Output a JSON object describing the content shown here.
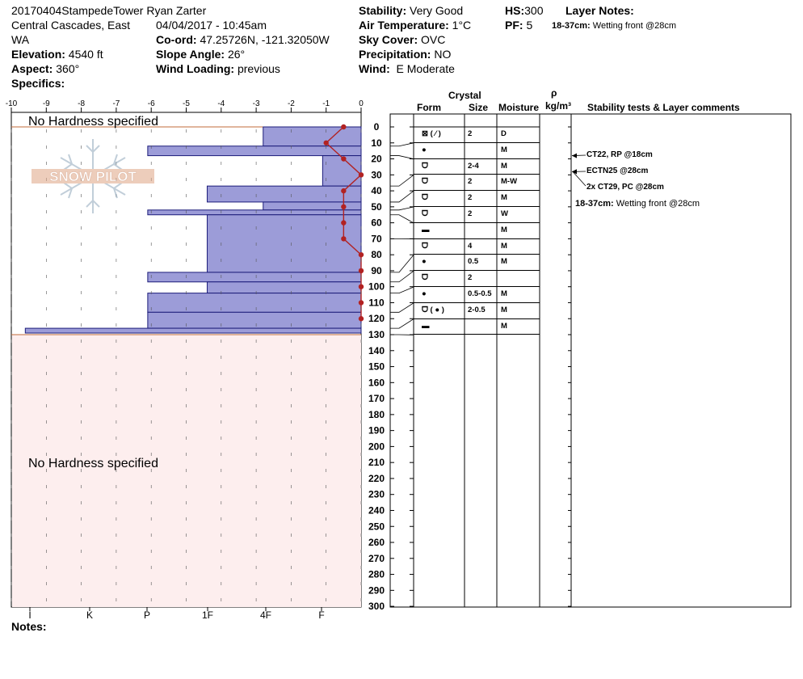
{
  "header": {
    "title_line1": "20170404StampedeTower Ryan Zarter",
    "location_line1": "Central Cascades, East",
    "location_line2": "WA",
    "elevation_label": "Elevation:",
    "elevation_value": "4540 ft",
    "aspect_label": "Aspect:",
    "aspect_value": "360°",
    "specifics_label": "Specifics:",
    "datetime": "04/04/2017 - 10:45am",
    "coord_label": "Co-ord:",
    "coord_value": "47.25726N, -121.32050W",
    "slope_label": "Slope Angle:",
    "slope_value": "26°",
    "wind_loading_label": "Wind Loading:",
    "wind_loading_value": "previous",
    "stability_label": "Stability:",
    "stability_value": "Very Good",
    "air_temp_label": "Air Temperature:",
    "air_temp_value": "1°C",
    "sky_label": "Sky Cover:",
    "sky_value": "OVC",
    "precip_label": "Precipitation:",
    "precip_value": "NO",
    "wind_label": "Wind:",
    "wind_value": "E Moderate",
    "hs_label": "HS:",
    "hs_value": "300",
    "pf_label": "PF:",
    "pf_value": "5",
    "layer_notes_label": "Layer Notes:",
    "layer_note_depth": "18-37cm:",
    "layer_note_text": "Wetting front @28cm"
  },
  "columns": {
    "crystal": "Crystal",
    "form": "Form",
    "size": "Size",
    "moisture": "Moisture",
    "rho": "ρ",
    "density_unit": "kg/m³",
    "stability_comments": "Stability tests & Layer comments"
  },
  "notes_label": "Notes:",
  "logo_text": "SNOW PILOT",
  "colors": {
    "hardness_fill": "#9c9cd8",
    "temp_line": "#b22222",
    "no_hardness_bg": "#fdeeee"
  },
  "chart_data": {
    "type": "bar",
    "no_hardness_label": "No Hardness specified",
    "temperature_axis": {
      "ticks": [
        -10,
        -9,
        -8,
        -7,
        -6,
        -5,
        -4,
        -3,
        -2,
        -1,
        0
      ],
      "range": [
        -10,
        0
      ]
    },
    "hardness_axis": {
      "labels": [
        "I",
        "K",
        "P",
        "1F",
        "4F",
        "F"
      ]
    },
    "depth_axis": {
      "range": [
        0,
        300
      ],
      "step": 10
    },
    "hardness_profile": [
      {
        "from": 0,
        "to": 12,
        "temp_equiv": -2.8
      },
      {
        "from": 12,
        "to": 18,
        "temp_equiv": -6.1
      },
      {
        "from": 18,
        "to": 37,
        "temp_equiv": -1.1
      },
      {
        "from": 37,
        "to": 47,
        "temp_equiv": -4.4
      },
      {
        "from": 47,
        "to": 52,
        "temp_equiv": -2.8
      },
      {
        "from": 52,
        "to": 55,
        "temp_equiv": -6.1
      },
      {
        "from": 55,
        "to": 91,
        "temp_equiv": -4.4
      },
      {
        "from": 91,
        "to": 97,
        "temp_equiv": -6.1
      },
      {
        "from": 97,
        "to": 104,
        "temp_equiv": -4.4
      },
      {
        "from": 104,
        "to": 116,
        "temp_equiv": -6.1
      },
      {
        "from": 116,
        "to": 126,
        "temp_equiv": -6.1
      },
      {
        "from": 126,
        "to": 129,
        "temp_equiv": -9.6
      }
    ],
    "temperature_profile": [
      {
        "depth": 0,
        "temp": -0.5
      },
      {
        "depth": 10,
        "temp": -1.0
      },
      {
        "depth": 20,
        "temp": -0.5
      },
      {
        "depth": 30,
        "temp": 0
      },
      {
        "depth": 40,
        "temp": -0.5
      },
      {
        "depth": 50,
        "temp": -0.5
      },
      {
        "depth": 60,
        "temp": -0.5
      },
      {
        "depth": 70,
        "temp": -0.5
      },
      {
        "depth": 80,
        "temp": 0
      },
      {
        "depth": 90,
        "temp": 0
      },
      {
        "depth": 100,
        "temp": 0
      },
      {
        "depth": 110,
        "temp": 0
      },
      {
        "depth": 120,
        "temp": 0
      }
    ],
    "layers": [
      {
        "from": 0,
        "to": 12,
        "form": "⊠ ( ⁄ )",
        "size": "2",
        "moisture": "D"
      },
      {
        "from": 12,
        "to": 18,
        "form": "●",
        "size": "",
        "moisture": "M"
      },
      {
        "from": 18,
        "to": 37,
        "form": "ᗜ",
        "size": "2-4",
        "moisture": "M"
      },
      {
        "from": 37,
        "to": 47,
        "form": "ᗜ",
        "size": "2",
        "moisture": "M-W"
      },
      {
        "from": 47,
        "to": 52,
        "form": "ᗜ",
        "size": "2",
        "moisture": "M"
      },
      {
        "from": 52,
        "to": 55,
        "form": "ᗜ",
        "size": "2",
        "moisture": "W"
      },
      {
        "from": 55,
        "to": 70,
        "form": "▬",
        "size": "",
        "moisture": "M"
      },
      {
        "from": 70,
        "to": 91,
        "form": "ᗜ",
        "size": "4",
        "moisture": "M"
      },
      {
        "from": 91,
        "to": 97,
        "form": "●",
        "size": "0.5",
        "moisture": "M"
      },
      {
        "from": 97,
        "to": 104,
        "form": "ᗜ",
        "size": "2",
        "moisture": ""
      },
      {
        "from": 104,
        "to": 116,
        "form": "●",
        "size": "0.5-0.5",
        "moisture": "M"
      },
      {
        "from": 116,
        "to": 126,
        "form": "ᗜ ( ● )",
        "size": "2-0.5",
        "moisture": "M"
      },
      {
        "from": 126,
        "to": 130,
        "form": "▬",
        "size": "",
        "moisture": "M"
      }
    ],
    "stability_tests": [
      {
        "depth": 18,
        "text": "CT22, RP @18cm"
      },
      {
        "depth": 28,
        "text": "ECTN25 @28cm"
      },
      {
        "depth": 28,
        "text": "2x CT29, PC @28cm"
      }
    ]
  }
}
